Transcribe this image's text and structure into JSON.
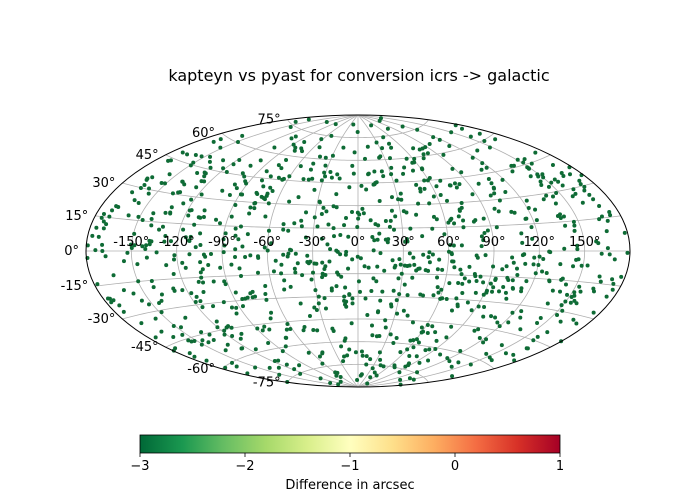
{
  "chart_data": {
    "type": "scatter",
    "projection": "aitoff",
    "title": "kapteyn vs pyast for conversion icrs -> galactic",
    "x_tick_labels": [
      "-150°",
      "-120°",
      "-90°",
      "-60°",
      "-30°",
      "0°",
      "30°",
      "60°",
      "90°",
      "120°",
      "150°"
    ],
    "y_tick_labels": [
      "-75°",
      "-60°",
      "-45°",
      "-30°",
      "-15°",
      "0°",
      "15°",
      "30°",
      "45°",
      "60°",
      "75°"
    ],
    "x_ticks_deg": [
      -150,
      -120,
      -90,
      -60,
      -30,
      0,
      30,
      60,
      90,
      120,
      150
    ],
    "y_ticks_deg": [
      -75,
      -60,
      -45,
      -30,
      -15,
      0,
      15,
      30,
      45,
      60,
      75
    ],
    "xlim": [
      -180,
      180
    ],
    "ylim": [
      -90,
      90
    ],
    "grid": true,
    "point_count": 1000,
    "point_color": "#0e6b35",
    "colorbar": {
      "label": "Difference in arcsec",
      "range": [
        -3,
        1
      ],
      "tick_labels": [
        "−3",
        "−2",
        "−1",
        "0",
        "1"
      ],
      "tick_values": [
        -3,
        -2,
        -1,
        0,
        1
      ],
      "colormap": "RdYlGn_r",
      "colors": [
        "#006837",
        "#1a9850",
        "#66bd63",
        "#a6d96a",
        "#d9ef8b",
        "#ffffbf",
        "#fee08b",
        "#fdae61",
        "#f46d43",
        "#d73027",
        "#a50026"
      ]
    }
  }
}
